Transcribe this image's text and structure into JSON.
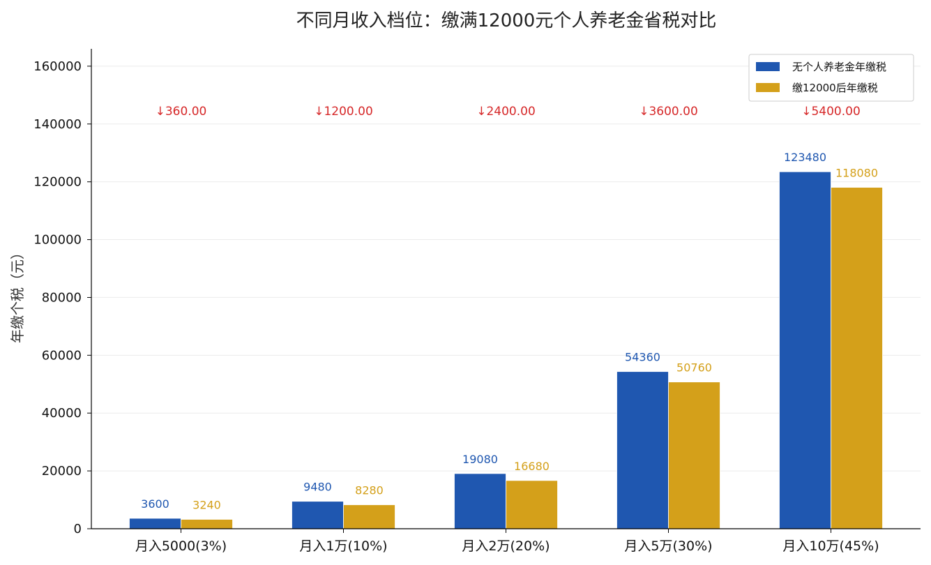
{
  "chart_data": {
    "type": "bar",
    "title": "不同月收入档位：缴满12000元个人养老金省税对比",
    "xlabel": "",
    "ylabel": "年缴个税（元）",
    "ylim": [
      0,
      166000
    ],
    "yticks": [
      0,
      20000,
      40000,
      60000,
      80000,
      100000,
      120000,
      140000,
      160000
    ],
    "grid": "horizontal",
    "legend_position": "top-right",
    "categories": [
      "月入5000(3%)",
      "月入1万(10%)",
      "月入2万(20%)",
      "月入5万(30%)",
      "月入10万(45%)"
    ],
    "series": [
      {
        "name": "无个人养老金年缴税",
        "color": "#1f57b0",
        "values": [
          3600,
          9480,
          19080,
          54360,
          123480
        ]
      },
      {
        "name": "缴12000后年缴税",
        "color": "#d4a01a",
        "values": [
          3240,
          8280,
          16680,
          50760,
          118080
        ]
      }
    ],
    "savings_labels": [
      "↓360.00",
      "↓1200.00",
      "↓2400.00",
      "↓3600.00",
      "↓5400.00"
    ],
    "savings_color": "#d62728"
  }
}
